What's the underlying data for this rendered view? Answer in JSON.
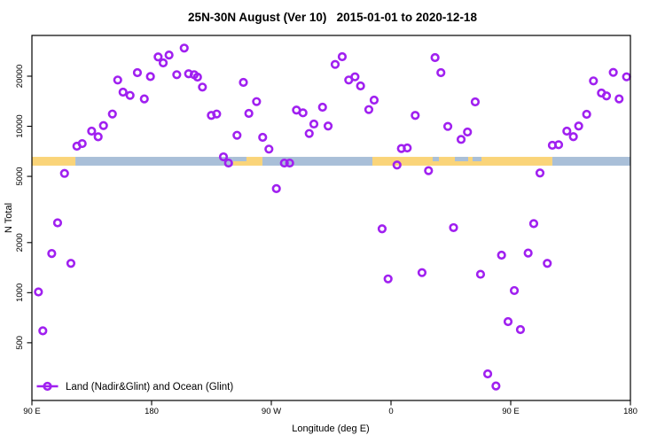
{
  "title": "25N-30N August (Ver 10)   2015-01-01 to 2020-12-18",
  "legend": {
    "label": "Land (Nadir&Glint) and Ocean (Glint)"
  },
  "colors": {
    "point": "#A020F0",
    "land": "#FAD479",
    "ocean": "#A9BFD8",
    "axis": "#000000"
  },
  "chart_data": {
    "type": "scatter",
    "title": "25N-30N August (Ver 10)   2015-01-01 to 2020-12-18",
    "xlabel": "Longitude (deg E)",
    "ylabel": "N Total",
    "x_axis": {
      "description": "degrees eastward along axis starting at 90E, wrapping the globe 1.25 times",
      "min": 0,
      "max": 450,
      "ticks": [
        {
          "pos": 0,
          "label": "90 E"
        },
        {
          "pos": 90,
          "label": "180"
        },
        {
          "pos": 180,
          "label": "90 W"
        },
        {
          "pos": 270,
          "label": "0"
        },
        {
          "pos": 360,
          "label": "90 E"
        },
        {
          "pos": 450,
          "label": "180"
        }
      ]
    },
    "y_axis": {
      "scale": "log",
      "min": 225,
      "max": 35150,
      "ticks": [
        500,
        1000,
        2000,
        5000,
        10000,
        20000
      ]
    },
    "band": {
      "value_top": 6550,
      "value_bottom": 5800,
      "segments": [
        {
          "from": 0,
          "to": 32.7,
          "surface": "land"
        },
        {
          "from": 32.7,
          "to": 151.3,
          "surface": "ocean"
        },
        {
          "from": 151.3,
          "to": 173.3,
          "surface": "land"
        },
        {
          "from": 173.3,
          "to": 256,
          "surface": "ocean"
        },
        {
          "from": 256,
          "to": 391.3,
          "surface": "land"
        },
        {
          "from": 391.3,
          "to": 450,
          "surface": "ocean"
        }
      ],
      "ocean_notches_top_half": [
        {
          "from": 151.3,
          "to": 161.3
        },
        {
          "from": 301.3,
          "to": 306
        },
        {
          "from": 318,
          "to": 328
        },
        {
          "from": 331.3,
          "to": 338
        }
      ]
    },
    "points": [
      [
        4.9,
        1010
      ],
      [
        8.2,
        590
      ],
      [
        14.9,
        1720
      ],
      [
        19.3,
        2630
      ],
      [
        24.5,
        5210
      ],
      [
        29.3,
        1500
      ],
      [
        33.8,
        7590
      ],
      [
        37.8,
        7870
      ],
      [
        44.9,
        9350
      ],
      [
        49.8,
        8650
      ],
      [
        53.8,
        10100
      ],
      [
        60.5,
        11850
      ],
      [
        64.5,
        18970
      ],
      [
        68.5,
        16040
      ],
      [
        73.8,
        15330
      ],
      [
        79.3,
        21000
      ],
      [
        84.5,
        14600
      ],
      [
        89.1,
        19900
      ],
      [
        94.9,
        26100
      ],
      [
        98.7,
        24040
      ],
      [
        103.1,
        26800
      ],
      [
        108.9,
        20420
      ],
      [
        114.5,
        29500
      ],
      [
        117.8,
        20680
      ],
      [
        122.0,
        20420
      ],
      [
        124.5,
        19760
      ],
      [
        128.2,
        17200
      ],
      [
        134.9,
        11620
      ],
      [
        138.9,
        11850
      ],
      [
        144.0,
        6550
      ],
      [
        147.8,
        6010
      ],
      [
        154.2,
        8830
      ],
      [
        159.0,
        18350
      ],
      [
        163.1,
        11950
      ],
      [
        168.9,
        14070
      ],
      [
        173.5,
        8580
      ],
      [
        178.2,
        7290
      ],
      [
        183.8,
        4220
      ],
      [
        189.8,
        6010
      ],
      [
        193.8,
        6010
      ],
      [
        198.9,
        12510
      ],
      [
        203.8,
        12050
      ],
      [
        208.5,
        9050
      ],
      [
        212.0,
        10320
      ],
      [
        218.5,
        13020
      ],
      [
        222.7,
        10030
      ],
      [
        228.0,
        23540
      ],
      [
        233.3,
        26190
      ],
      [
        238.2,
        18970
      ],
      [
        242.9,
        19830
      ],
      [
        247.1,
        17480
      ],
      [
        253.3,
        12600
      ],
      [
        257.3,
        14360
      ],
      [
        263.3,
        2420
      ],
      [
        267.8,
        1210
      ],
      [
        274.5,
        5850
      ],
      [
        277.8,
        7350
      ],
      [
        282.2,
        7410
      ],
      [
        288.2,
        11620
      ],
      [
        293.3,
        1320
      ],
      [
        298.2,
        5410
      ],
      [
        303.1,
        25880
      ],
      [
        307.5,
        21000
      ],
      [
        312.7,
        9980
      ],
      [
        317.0,
        2460
      ],
      [
        322.7,
        8340
      ],
      [
        327.5,
        9240
      ],
      [
        333.3,
        14010
      ],
      [
        337.3,
        1290
      ],
      [
        342.7,
        325
      ],
      [
        348.9,
        275
      ],
      [
        353.1,
        1680
      ],
      [
        358.0,
        670
      ],
      [
        362.7,
        1030
      ],
      [
        367.3,
        600
      ],
      [
        373.1,
        1730
      ],
      [
        377.3,
        2600
      ],
      [
        382.0,
        5240
      ],
      [
        387.5,
        1500
      ],
      [
        391.3,
        7690
      ],
      [
        396.0,
        7750
      ],
      [
        402.2,
        9350
      ],
      [
        407.1,
        8660
      ],
      [
        411.1,
        10030
      ],
      [
        417.1,
        11800
      ],
      [
        422.2,
        18740
      ],
      [
        428.2,
        15840
      ],
      [
        432.0,
        15220
      ],
      [
        437.1,
        21080
      ],
      [
        441.5,
        14600
      ],
      [
        447.1,
        19830
      ]
    ]
  }
}
